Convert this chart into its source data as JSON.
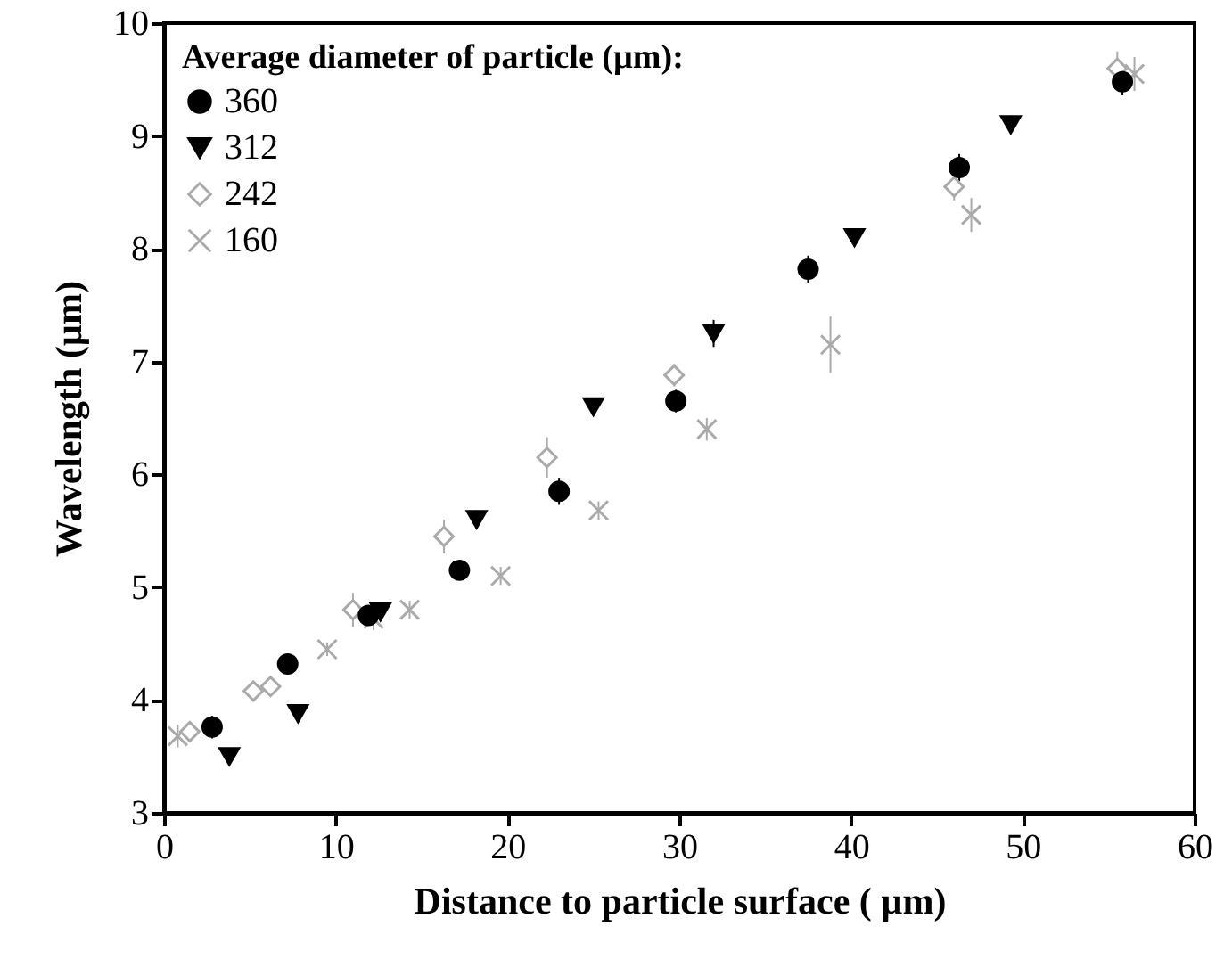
{
  "chart_data": {
    "type": "scatter",
    "xlabel": "Distance to particle surface ( µm)",
    "ylabel": "Wavelength (µm)",
    "legend_title": "Average diameter of particle (µm):",
    "legend": "top left",
    "grid": false,
    "xlim": [
      0,
      60
    ],
    "xticks": [
      0,
      10,
      20,
      30,
      40,
      50,
      60
    ],
    "ylim": [
      3,
      10
    ],
    "yticks": [
      3,
      4,
      5,
      6,
      7,
      8,
      9,
      10
    ],
    "series": [
      {
        "name": "360",
        "color": "#000000",
        "marker": "circle",
        "x": [
          2.8,
          7.2,
          11.9,
          17.2,
          23,
          29.8,
          37.5,
          46.3,
          55.8
        ],
        "values": [
          3.76,
          4.32,
          4.75,
          5.15,
          5.85,
          6.65,
          7.82,
          8.72,
          9.48
        ],
        "errors": [
          0.1,
          0.08,
          null,
          0.08,
          0.12,
          0.1,
          0.12,
          0.12,
          0.12
        ]
      },
      {
        "name": "312",
        "color": "#000000",
        "marker": "triangle",
        "x": [
          3.8,
          7.8,
          12.6,
          18.2,
          25,
          32,
          40.2,
          49.3
        ],
        "values": [
          3.5,
          3.88,
          4.78,
          5.6,
          6.6,
          7.25,
          8.1,
          9.1
        ],
        "errors": [
          0.05,
          0.05,
          null,
          0.08,
          0.08,
          0.12,
          0.08,
          0.08
        ]
      },
      {
        "name": "242",
        "color": "#aaaaaa",
        "marker": "diamond",
        "x": [
          1.5,
          5.2,
          6.2,
          11,
          16.3,
          22.3,
          29.7,
          46,
          55.5
        ],
        "values": [
          3.72,
          4.08,
          4.12,
          4.8,
          5.45,
          6.15,
          6.88,
          8.55,
          9.6
        ],
        "errors": [
          0.08,
          0.08,
          0.08,
          0.15,
          0.15,
          0.18,
          0.1,
          0.12,
          0.15
        ]
      },
      {
        "name": "160",
        "color": "#aaaaaa",
        "marker": "cross",
        "x": [
          0.8,
          9.5,
          12.2,
          14.3,
          19.6,
          25.3,
          31.6,
          38.8,
          47,
          56.5
        ],
        "values": [
          3.68,
          4.45,
          4.72,
          4.8,
          5.1,
          5.68,
          6.4,
          7.15,
          8.3,
          9.55
        ],
        "errors": [
          0.1,
          0.06,
          0.1,
          0.08,
          0.08,
          0.08,
          0.1,
          0.25,
          0.15,
          0.15
        ]
      }
    ]
  }
}
